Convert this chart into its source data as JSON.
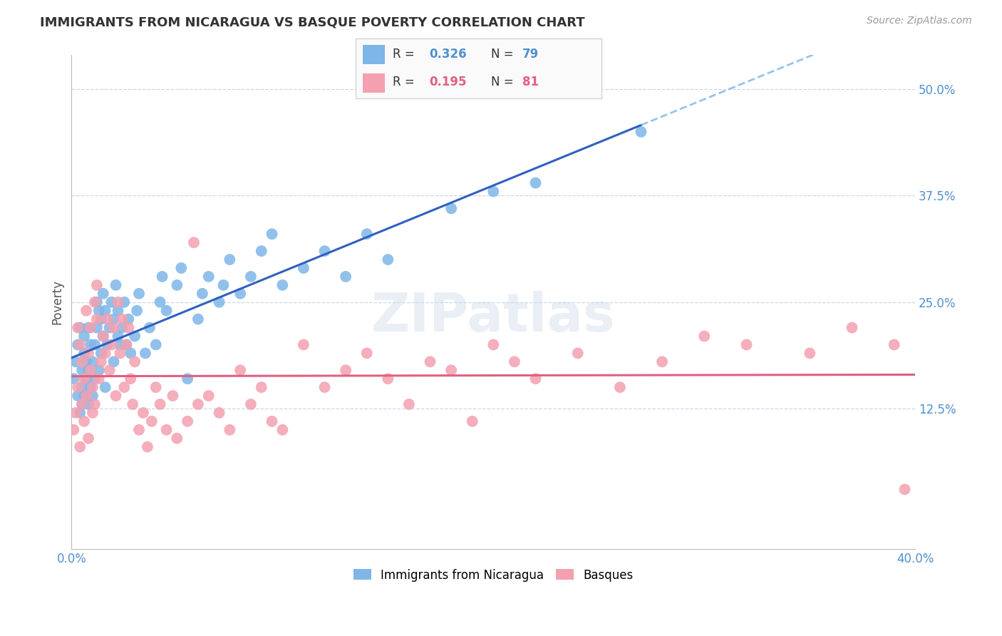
{
  "title": "IMMIGRANTS FROM NICARAGUA VS BASQUE POVERTY CORRELATION CHART",
  "source": "Source: ZipAtlas.com",
  "ylabel": "Poverty",
  "y_tick_labels": [
    "12.5%",
    "25.0%",
    "37.5%",
    "50.0%"
  ],
  "y_tick_values": [
    0.125,
    0.25,
    0.375,
    0.5
  ],
  "x_range": [
    0.0,
    0.4
  ],
  "y_range": [
    -0.04,
    0.54
  ],
  "watermark": "ZIPatlas",
  "legend_r1": "0.326",
  "legend_n1": "79",
  "legend_r2": "0.195",
  "legend_n2": "81",
  "color_blue": "#7EB6E8",
  "color_pink": "#F4A0B0",
  "color_blue_line": "#3060C0",
  "color_pink_line": "#E06080",
  "color_blue_text": "#5090D0",
  "color_pink_text": "#E06080",
  "color_axis_label": "#5090D0",
  "background_color": "#FFFFFF",
  "grid_color": "#C8D8EE",
  "blue_scatter_x": [
    0.001,
    0.002,
    0.003,
    0.003,
    0.004,
    0.004,
    0.005,
    0.005,
    0.005,
    0.006,
    0.006,
    0.006,
    0.007,
    0.007,
    0.008,
    0.008,
    0.008,
    0.009,
    0.009,
    0.01,
    0.01,
    0.011,
    0.011,
    0.012,
    0.012,
    0.013,
    0.013,
    0.014,
    0.014,
    0.015,
    0.015,
    0.016,
    0.016,
    0.017,
    0.018,
    0.019,
    0.02,
    0.02,
    0.021,
    0.022,
    0.022,
    0.023,
    0.024,
    0.025,
    0.026,
    0.027,
    0.028,
    0.03,
    0.031,
    0.032,
    0.035,
    0.037,
    0.04,
    0.042,
    0.043,
    0.045,
    0.05,
    0.052,
    0.055,
    0.06,
    0.062,
    0.065,
    0.07,
    0.072,
    0.075,
    0.08,
    0.085,
    0.09,
    0.095,
    0.1,
    0.11,
    0.12,
    0.13,
    0.14,
    0.15,
    0.18,
    0.2,
    0.22,
    0.27
  ],
  "blue_scatter_y": [
    0.16,
    0.18,
    0.14,
    0.2,
    0.12,
    0.22,
    0.15,
    0.17,
    0.13,
    0.14,
    0.19,
    0.21,
    0.16,
    0.18,
    0.13,
    0.17,
    0.22,
    0.15,
    0.2,
    0.14,
    0.18,
    0.16,
    0.2,
    0.22,
    0.25,
    0.24,
    0.17,
    0.19,
    0.23,
    0.21,
    0.26,
    0.15,
    0.24,
    0.2,
    0.22,
    0.25,
    0.18,
    0.23,
    0.27,
    0.21,
    0.24,
    0.2,
    0.22,
    0.25,
    0.2,
    0.23,
    0.19,
    0.21,
    0.24,
    0.26,
    0.19,
    0.22,
    0.2,
    0.25,
    0.28,
    0.24,
    0.27,
    0.29,
    0.16,
    0.23,
    0.26,
    0.28,
    0.25,
    0.27,
    0.3,
    0.26,
    0.28,
    0.31,
    0.33,
    0.27,
    0.29,
    0.31,
    0.28,
    0.33,
    0.3,
    0.36,
    0.38,
    0.39,
    0.45
  ],
  "pink_scatter_x": [
    0.001,
    0.002,
    0.003,
    0.003,
    0.004,
    0.004,
    0.005,
    0.005,
    0.006,
    0.006,
    0.007,
    0.007,
    0.008,
    0.008,
    0.009,
    0.009,
    0.01,
    0.01,
    0.011,
    0.011,
    0.012,
    0.012,
    0.013,
    0.014,
    0.015,
    0.016,
    0.017,
    0.018,
    0.019,
    0.02,
    0.021,
    0.022,
    0.023,
    0.024,
    0.025,
    0.026,
    0.027,
    0.028,
    0.029,
    0.03,
    0.032,
    0.034,
    0.036,
    0.038,
    0.04,
    0.042,
    0.045,
    0.048,
    0.05,
    0.055,
    0.058,
    0.06,
    0.065,
    0.07,
    0.075,
    0.08,
    0.085,
    0.09,
    0.095,
    0.1,
    0.11,
    0.12,
    0.13,
    0.14,
    0.15,
    0.16,
    0.17,
    0.18,
    0.19,
    0.2,
    0.21,
    0.22,
    0.24,
    0.26,
    0.28,
    0.3,
    0.32,
    0.35,
    0.37,
    0.39,
    0.395
  ],
  "pink_scatter_y": [
    0.1,
    0.12,
    0.22,
    0.15,
    0.08,
    0.2,
    0.13,
    0.18,
    0.11,
    0.16,
    0.24,
    0.14,
    0.19,
    0.09,
    0.22,
    0.17,
    0.12,
    0.15,
    0.25,
    0.13,
    0.23,
    0.27,
    0.16,
    0.18,
    0.21,
    0.19,
    0.23,
    0.17,
    0.2,
    0.22,
    0.14,
    0.25,
    0.19,
    0.23,
    0.15,
    0.2,
    0.22,
    0.16,
    0.13,
    0.18,
    0.1,
    0.12,
    0.08,
    0.11,
    0.15,
    0.13,
    0.1,
    0.14,
    0.09,
    0.11,
    0.32,
    0.13,
    0.14,
    0.12,
    0.1,
    0.17,
    0.13,
    0.15,
    0.11,
    0.1,
    0.2,
    0.15,
    0.17,
    0.19,
    0.16,
    0.13,
    0.18,
    0.17,
    0.11,
    0.2,
    0.18,
    0.16,
    0.19,
    0.15,
    0.18,
    0.21,
    0.2,
    0.19,
    0.22,
    0.2,
    0.03
  ]
}
